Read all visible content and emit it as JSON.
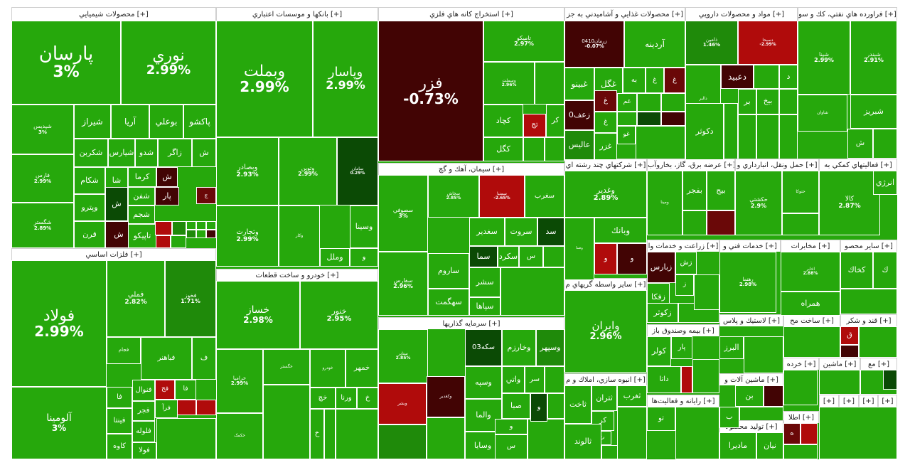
{
  "palette": {
    "green": "#26a80c",
    "green_mid": "#1f8a0a",
    "green_dark": "#0e5e06",
    "green_deep": "#0b4a05",
    "red": "#b00b0b",
    "red_dark": "#6a0808",
    "maroon": "#420404",
    "white": "#ffffff"
  },
  "sectors": [
    {
      "id": "chem",
      "title": "محصولات شيميايي [+]"
    },
    {
      "id": "bank",
      "title": "بانكها و موسسات اعتباري [+]"
    },
    {
      "id": "metal_ore",
      "title": "استخراج كانه هاي فلزي [+]"
    },
    {
      "id": "food",
      "title": "محصولات غذايي و آشاميدني به جز [+]"
    },
    {
      "id": "drug",
      "title": "مواد و محصولات دارويي [+]"
    },
    {
      "id": "oil",
      "title": "فراورده هاي نفتي، كك و سو [+]"
    },
    {
      "id": "cement",
      "title": "سيمان، آهك و گچ [+]"
    },
    {
      "id": "multi",
      "title": "شركتهاي چند رشته اي [+]"
    },
    {
      "id": "power",
      "title": "عرضه برق، گاز، بخاروآب [+]"
    },
    {
      "id": "transport",
      "title": "حمل ونقل، انبارداري و [+]"
    },
    {
      "id": "aux",
      "title": "فعاليتهاي كمكي به [+]"
    },
    {
      "id": "base_metal",
      "title": "فلزات اساسي [+]"
    },
    {
      "id": "auto",
      "title": "خودرو و ساخت قطعات [+]"
    },
    {
      "id": "invest",
      "title": "سرمايه گذاريها [+]"
    },
    {
      "id": "finance",
      "title": "ساير واسطه گريهاي م [+]"
    },
    {
      "id": "farm",
      "title": "زراعت و خدمات وا [+]"
    },
    {
      "id": "tech",
      "title": "خدمات فني و [+]"
    },
    {
      "id": "telecom",
      "title": "مخابرات [+]"
    },
    {
      "id": "other_prod",
      "title": "ساير محصو [+]"
    },
    {
      "id": "insurance",
      "title": "بيمه وصندوق باز [+]"
    },
    {
      "id": "plastic",
      "title": "لاستيك و پلاس [+]"
    },
    {
      "id": "build",
      "title": "ساخت مح [+]"
    },
    {
      "id": "sugar",
      "title": "قند و شكر [+]"
    },
    {
      "id": "realestate",
      "title": "انبوه سازي، املاك و م [+]"
    },
    {
      "id": "it",
      "title": "رايانه و فعاليت‌ها [+]"
    },
    {
      "id": "machinery",
      "title": "ماشين آلات و [+]"
    },
    {
      "id": "retail",
      "title": "خرده [+]"
    },
    {
      "id": "machin2",
      "title": "ماشين [+]"
    },
    {
      "id": "mine2",
      "title": "مع [+]"
    },
    {
      "id": "elec",
      "title": "توليد محصولا [+]"
    },
    {
      "id": "info",
      "title": "اطلا [+]"
    },
    {
      "id": "misc1",
      "title": "[+]"
    },
    {
      "id": "misc2",
      "title": "[+]"
    },
    {
      "id": "misc3",
      "title": "[+]"
    },
    {
      "id": "misc4",
      "title": "[+]"
    }
  ],
  "tiles": [
    {
      "name": "پارسان",
      "pct": "3%",
      "c": "green"
    },
    {
      "name": "نوري",
      "pct": "2.99%",
      "c": "green"
    },
    {
      "name": "شپديس",
      "pct": "3%",
      "c": "green"
    },
    {
      "name": "شيراز",
      "pct": "",
      "c": "green"
    },
    {
      "name": "آريا",
      "pct": "",
      "c": "green"
    },
    {
      "name": "بوعلي",
      "pct": "",
      "c": "green"
    },
    {
      "name": "پاكشو",
      "pct": "",
      "c": "green"
    },
    {
      "name": "فارس",
      "pct": "2.99%",
      "c": "green"
    },
    {
      "name": "شكربن",
      "pct": "",
      "c": "green"
    },
    {
      "name": "شيارس",
      "pct": "",
      "c": "green"
    },
    {
      "name": "شدو",
      "pct": "",
      "c": "green"
    },
    {
      "name": "زاگر",
      "pct": "",
      "c": "green"
    },
    {
      "name": "ش",
      "pct": "",
      "c": "green"
    },
    {
      "name": "شكام",
      "pct": "",
      "c": "green"
    },
    {
      "name": "شا",
      "pct": "",
      "c": "green"
    },
    {
      "name": "كرما",
      "pct": "",
      "c": "green"
    },
    {
      "name": "ش",
      "pct": "",
      "c": "maroon"
    },
    {
      "name": "شگستر",
      "pct": "2.89%",
      "c": "green"
    },
    {
      "name": "وپترو",
      "pct": "",
      "c": "green"
    },
    {
      "name": "ش",
      "pct": "",
      "c": "green_deep"
    },
    {
      "name": "شفن",
      "pct": "",
      "c": "green"
    },
    {
      "name": "پار",
      "pct": "",
      "c": "maroon"
    },
    {
      "name": "ج",
      "pct": "",
      "c": "red_dark"
    },
    {
      "name": "قرن",
      "pct": "",
      "c": "green"
    },
    {
      "name": "ش",
      "pct": "",
      "c": "maroon"
    },
    {
      "name": "شجم",
      "pct": "",
      "c": "green"
    },
    {
      "name": "تاپيكو",
      "pct": "",
      "c": "green"
    },
    {
      "name": "",
      "pct": "",
      "c": "red"
    },
    {
      "name": "",
      "pct": "",
      "c": "green_mid"
    },
    {
      "name": "وبملت",
      "pct": "2.99%",
      "c": "green"
    },
    {
      "name": "وپاسار",
      "pct": "2.99%",
      "c": "green"
    },
    {
      "name": "وبصادر",
      "pct": "2.93%",
      "c": "green"
    },
    {
      "name": "وتوين",
      "pct": "2.99%",
      "c": "green"
    },
    {
      "name": "سامان",
      "pct": "0.29%",
      "c": "green_deep"
    },
    {
      "name": "وتجارت",
      "pct": "2.99%",
      "c": "green"
    },
    {
      "name": "وكار",
      "pct": "",
      "c": "green"
    },
    {
      "name": "وسينا",
      "pct": "",
      "c": "green"
    },
    {
      "name": "وملل",
      "pct": "",
      "c": "green"
    },
    {
      "name": "و",
      "pct": "",
      "c": "green"
    },
    {
      "name": "فزر",
      "pct": "-0.73%",
      "c": "maroon"
    },
    {
      "name": "تاميكو",
      "pct": "2.97%",
      "c": "green"
    },
    {
      "name": "وسملت",
      "pct": "2.96%",
      "c": "green"
    },
    {
      "name": "كچاد",
      "pct": "",
      "c": "green"
    },
    {
      "name": "تج",
      "pct": "",
      "c": "red"
    },
    {
      "name": "كر",
      "pct": "",
      "c": "green"
    },
    {
      "name": "كگل",
      "pct": "",
      "c": "green"
    },
    {
      "name": "زرمان0410",
      "pct": "-0.07%",
      "c": "maroon"
    },
    {
      "name": "آردينه",
      "pct": "",
      "c": "green"
    },
    {
      "name": "غبينو",
      "pct": "",
      "c": "green"
    },
    {
      "name": "غگل",
      "pct": "",
      "c": "green"
    },
    {
      "name": "به",
      "pct": "",
      "c": "green"
    },
    {
      "name": "غ",
      "pct": "",
      "c": "green"
    },
    {
      "name": "غ",
      "pct": "",
      "c": "red_dark"
    },
    {
      "name": "زعف0",
      "pct": "",
      "c": "maroon"
    },
    {
      "name": "غ",
      "pct": "",
      "c": "red_dark"
    },
    {
      "name": "غم",
      "pct": "",
      "c": "green"
    },
    {
      "name": "غ",
      "pct": "",
      "c": "green"
    },
    {
      "name": "عاليس",
      "pct": "",
      "c": "green_mid"
    },
    {
      "name": "غزر",
      "pct": "",
      "c": "green"
    },
    {
      "name": "غو",
      "pct": "",
      "c": "green"
    },
    {
      "name": "ذامين",
      "pct": "1.46%",
      "c": "green_mid"
    },
    {
      "name": "دسبحا",
      "pct": "-2.99%",
      "c": "red"
    },
    {
      "name": "تيپيكو",
      "pct": "",
      "c": "green"
    },
    {
      "name": "دعبيد",
      "pct": "",
      "c": "maroon"
    },
    {
      "name": "د",
      "pct": "",
      "c": "green"
    },
    {
      "name": "دالبر",
      "pct": "",
      "c": "green"
    },
    {
      "name": "بر",
      "pct": "",
      "c": "green"
    },
    {
      "name": "بيخ",
      "pct": "",
      "c": "green"
    },
    {
      "name": "دكوثر",
      "pct": "",
      "c": "green"
    },
    {
      "name": "شپنا",
      "pct": "2.99%",
      "c": "green"
    },
    {
      "name": "شبندر",
      "pct": "2.91%",
      "c": "green"
    },
    {
      "name": "شاوان",
      "pct": "",
      "c": "green"
    },
    {
      "name": "شبريز",
      "pct": "",
      "c": "green"
    },
    {
      "name": "ش",
      "pct": "",
      "c": "green"
    },
    {
      "name": "سصوفي",
      "pct": "3%",
      "c": "green"
    },
    {
      "name": "سخاش",
      "pct": "2.85%",
      "c": "green"
    },
    {
      "name": "سمتيا",
      "pct": "-2.65%",
      "c": "red"
    },
    {
      "name": "سغرب",
      "pct": "",
      "c": "green"
    },
    {
      "name": "ساروم",
      "pct": "",
      "c": "green"
    },
    {
      "name": "سفارس",
      "pct": "2.96%",
      "c": "green"
    },
    {
      "name": "سغدير",
      "pct": "",
      "c": "green"
    },
    {
      "name": "سروت",
      "pct": "",
      "c": "green"
    },
    {
      "name": "سد",
      "pct": "",
      "c": "green_deep"
    },
    {
      "name": "سما",
      "pct": "",
      "c": "green_deep"
    },
    {
      "name": "سكرد",
      "pct": "",
      "c": "green"
    },
    {
      "name": "س",
      "pct": "",
      "c": "green"
    },
    {
      "name": "سهگمت",
      "pct": "",
      "c": "green"
    },
    {
      "name": "سشر",
      "pct": "",
      "c": "green"
    },
    {
      "name": "سپاها",
      "pct": "",
      "c": "green"
    },
    {
      "name": "وغدير",
      "pct": "2.89%",
      "c": "green"
    },
    {
      "name": "وبانك",
      "pct": "",
      "c": "green"
    },
    {
      "name": "وصنا",
      "pct": "",
      "c": "green"
    },
    {
      "name": "و",
      "pct": "",
      "c": "red"
    },
    {
      "name": "و",
      "pct": "",
      "c": "maroon"
    },
    {
      "name": "ومينا",
      "pct": "",
      "c": "green"
    },
    {
      "name": "بفجر",
      "pct": "",
      "c": "green"
    },
    {
      "name": "بيج",
      "pct": "",
      "c": "green"
    },
    {
      "name": "حكشتي",
      "pct": "2.9%",
      "c": "green"
    },
    {
      "name": "حتوكا",
      "pct": "",
      "c": "green"
    },
    {
      "name": "كالا",
      "pct": "2.87%",
      "c": "green"
    },
    {
      "name": "انرژي",
      "pct": "",
      "c": "green"
    },
    {
      "name": "فولاد",
      "pct": "2.99%",
      "c": "green"
    },
    {
      "name": "فملي",
      "pct": "2.82%",
      "c": "green"
    },
    {
      "name": "فخوز",
      "pct": "1.71%",
      "c": "green_mid"
    },
    {
      "name": "فجام",
      "pct": "",
      "c": "green"
    },
    {
      "name": "فباهنر",
      "pct": "",
      "c": "green"
    },
    {
      "name": "ف",
      "pct": "",
      "c": "green"
    },
    {
      "name": "آلومينا",
      "pct": "3%",
      "c": "green"
    },
    {
      "name": "فنوال",
      "pct": "",
      "c": "green"
    },
    {
      "name": "فج",
      "pct": "",
      "c": "red"
    },
    {
      "name": "فا",
      "pct": "",
      "c": "green"
    },
    {
      "name": "فا",
      "pct": "",
      "c": "green"
    },
    {
      "name": "فجر",
      "pct": "",
      "c": "green"
    },
    {
      "name": "فرآ",
      "pct": "",
      "c": "green"
    },
    {
      "name": "فينتا",
      "pct": "",
      "c": "green"
    },
    {
      "name": "فلوله",
      "pct": "",
      "c": "green"
    },
    {
      "name": "كاوه",
      "pct": "",
      "c": "green"
    },
    {
      "name": "فولا",
      "pct": "",
      "c": "green"
    },
    {
      "name": "خساز",
      "pct": "2.98%",
      "c": "green"
    },
    {
      "name": "خنور",
      "pct": "2.95%",
      "c": "green"
    },
    {
      "name": "خرامپا",
      "pct": "2.99%",
      "c": "green"
    },
    {
      "name": "خگستر",
      "pct": "",
      "c": "green"
    },
    {
      "name": "خودرو",
      "pct": "",
      "c": "green"
    },
    {
      "name": "خمهر",
      "pct": "",
      "c": "green"
    },
    {
      "name": "خكمک",
      "pct": "",
      "c": "green"
    },
    {
      "name": "خچ",
      "pct": "",
      "c": "green"
    },
    {
      "name": "ورنا",
      "pct": "",
      "c": "green"
    },
    {
      "name": "خ",
      "pct": "",
      "c": "green"
    },
    {
      "name": "خ",
      "pct": "",
      "c": "green"
    },
    {
      "name": "وسپهر",
      "pct": "",
      "c": "green_mid"
    },
    {
      "name": "وخارزم",
      "pct": "",
      "c": "green"
    },
    {
      "name": "سكه03",
      "pct": "",
      "c": "green_deep"
    },
    {
      "name": "ستاير",
      "pct": "2.85%",
      "c": "green"
    },
    {
      "name": "وبشر",
      "pct": "",
      "c": "red"
    },
    {
      "name": "وكغدير",
      "pct": "",
      "c": "maroon"
    },
    {
      "name": "وسپه",
      "pct": "",
      "c": "green"
    },
    {
      "name": "واتي",
      "pct": "",
      "c": "green"
    },
    {
      "name": "سر",
      "pct": "",
      "c": "green"
    },
    {
      "name": "والما",
      "pct": "",
      "c": "green"
    },
    {
      "name": "صبا",
      "pct": "",
      "c": "green"
    },
    {
      "name": "و",
      "pct": "",
      "c": "green_deep"
    },
    {
      "name": "وسايا",
      "pct": "",
      "c": "green"
    },
    {
      "name": "س",
      "pct": "",
      "c": "green"
    },
    {
      "name": "و",
      "pct": "",
      "c": "green"
    },
    {
      "name": "وايران",
      "pct": "2.96%",
      "c": "green"
    },
    {
      "name": "زبارس",
      "pct": "",
      "c": "maroon"
    },
    {
      "name": "زش",
      "pct": "",
      "c": "green"
    },
    {
      "name": "زفكا",
      "pct": "",
      "c": "green"
    },
    {
      "name": "زكوثر",
      "pct": "",
      "c": "green"
    },
    {
      "name": "ز",
      "pct": "",
      "c": "green"
    },
    {
      "name": "رهنما",
      "pct": "2.98%",
      "c": "green"
    },
    {
      "name": "اخابر",
      "pct": "2.88%",
      "c": "green"
    },
    {
      "name": "همراه",
      "pct": "",
      "c": "green"
    },
    {
      "name": "كخاك",
      "pct": "",
      "c": "green"
    },
    {
      "name": "ك",
      "pct": "",
      "c": "green"
    },
    {
      "name": "كولر",
      "pct": "",
      "c": "green"
    },
    {
      "name": "البرز",
      "pct": "",
      "c": "green"
    },
    {
      "name": "پار",
      "pct": "",
      "c": "green"
    },
    {
      "name": "داتا",
      "pct": "",
      "c": "green"
    },
    {
      "name": "ق",
      "pct": "",
      "c": "red"
    },
    {
      "name": "ثاخت",
      "pct": "",
      "c": "green"
    },
    {
      "name": "ثتران",
      "pct": "",
      "c": "green"
    },
    {
      "name": "ثغرب",
      "pct": "",
      "c": "green"
    },
    {
      "name": "كر",
      "pct": "",
      "c": "green"
    },
    {
      "name": "ث",
      "pct": "",
      "c": "green"
    },
    {
      "name": "ثالوند",
      "pct": "",
      "c": "green"
    },
    {
      "name": "تو",
      "pct": "",
      "c": "green"
    },
    {
      "name": "بن",
      "pct": "",
      "c": "green"
    },
    {
      "name": "ب",
      "pct": "",
      "c": "green"
    },
    {
      "name": "نيان",
      "pct": "",
      "c": "green"
    },
    {
      "name": "مادیرا",
      "pct": "",
      "c": "green"
    },
    {
      "name": "ه",
      "pct": "",
      "c": "red_dark"
    },
    {
      "name": "",
      "pct": "",
      "c": "green"
    },
    {
      "name": "",
      "pct": "",
      "c": "green_deep"
    }
  ]
}
